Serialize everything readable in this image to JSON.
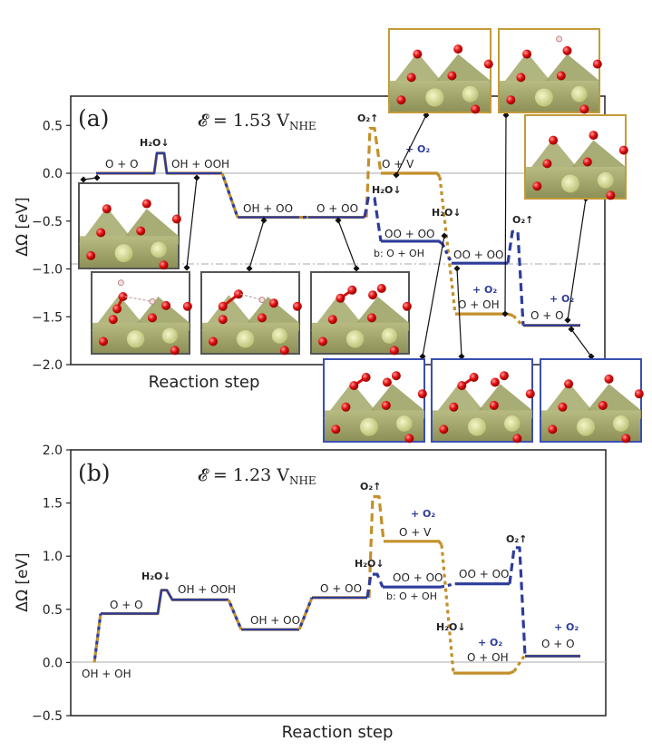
{
  "colors": {
    "blue": "#2e3c9a",
    "gold": "#c48f2a",
    "axis": "#222222",
    "grid": "#aaaaaa",
    "inset_gold_border": "#c49a3a",
    "inset_blue_border": "#3a4fb0",
    "inset_gray_border": "#555555"
  },
  "chart_data": [
    {
      "type": "line",
      "panel_label": "(a)",
      "title": "𝓔 = 1.53 V",
      "title_subscript": "NHE",
      "xlabel": "Reaction step",
      "ylabel": "ΔΩ  [eV]",
      "ylim": [
        -2.0,
        0.75
      ],
      "yticks": [
        0.5,
        0.0,
        -0.5,
        -1.0,
        -1.5,
        -2.0
      ],
      "ytick_labels": [
        "0.5",
        "0.0",
        "−0.5",
        "−1.0",
        "−1.5",
        "−2.0"
      ],
      "reference_lines": [
        {
          "y": 0.0,
          "style": "solid"
        },
        {
          "y": -0.95,
          "style": "dash-dot"
        }
      ],
      "states": [
        {
          "label": "O + O",
          "value": 0.0,
          "path": "shared"
        },
        {
          "label": "OH + OOH",
          "value": 0.0,
          "path": "shared"
        },
        {
          "label": "OH + OO",
          "value": -0.46,
          "path": "shared"
        },
        {
          "label": "O + OO",
          "value": -0.46,
          "path": "shared"
        },
        {
          "label": "O + V",
          "value": 0.0,
          "path": "gold"
        },
        {
          "label": "OO + OO",
          "value": -0.71,
          "path": "blue"
        },
        {
          "label": "OO + OO",
          "value": -0.94,
          "path": "blue"
        },
        {
          "label": "O + OH",
          "value": -1.47,
          "path": "gold"
        },
        {
          "label": "O + O",
          "value": -1.59,
          "path": "blue"
        }
      ],
      "peaks": [
        {
          "label": "H₂O↓",
          "value": 0.21,
          "path": "shared"
        },
        {
          "label": "O₂↑",
          "value": 0.47,
          "path": "gold"
        },
        {
          "label": "H₂O↓",
          "value": -0.26,
          "path": "blue"
        },
        {
          "label": "H₂O↓",
          "value": null,
          "path": "gold"
        },
        {
          "label": "O₂↑",
          "value": -0.61,
          "path": "blue"
        }
      ],
      "annotations": [
        "+ O₂",
        "+ O₂",
        "+ O₂",
        "b: O + OH"
      ]
    },
    {
      "type": "line",
      "panel_label": "(b)",
      "title": "𝓔 = 1.23 V",
      "title_subscript": "NHE",
      "xlabel": "Reaction step",
      "ylabel": "ΔΩ  [eV]",
      "ylim": [
        -0.5,
        2.0
      ],
      "yticks": [
        2.0,
        1.5,
        1.0,
        0.5,
        0.0,
        -0.5
      ],
      "ytick_labels": [
        "2.0",
        "1.5",
        "1.0",
        "0.5",
        "0.0",
        "−0.5"
      ],
      "reference_lines": [
        {
          "y": 0.0,
          "style": "solid"
        }
      ],
      "states": [
        {
          "label": "OH + OH",
          "value": 0.0,
          "path": "shared"
        },
        {
          "label": "O + O",
          "value": 0.46,
          "path": "shared"
        },
        {
          "label": "OH + OOH",
          "value": 0.59,
          "path": "shared"
        },
        {
          "label": "OH + OO",
          "value": 0.31,
          "path": "shared"
        },
        {
          "label": "O + OO",
          "value": 0.61,
          "path": "shared"
        },
        {
          "label": "O + V",
          "value": 1.14,
          "path": "gold"
        },
        {
          "label": "OO + OO",
          "value": 0.71,
          "path": "blue"
        },
        {
          "label": "OO + OO",
          "value": 0.74,
          "path": "blue"
        },
        {
          "label": "O + OH",
          "value": -0.1,
          "path": "gold"
        },
        {
          "label": "O + O",
          "value": 0.06,
          "path": "blue"
        }
      ],
      "peaks": [
        {
          "label": "H₂O↓",
          "value": 0.68,
          "path": "shared"
        },
        {
          "label": "O₂↑",
          "value": 1.56,
          "path": "gold"
        },
        {
          "label": "H₂O↓",
          "value": 0.83,
          "path": "blue"
        },
        {
          "label": "H₂O↓",
          "value": null,
          "path": "gold"
        },
        {
          "label": "O₂↑",
          "value": 1.08,
          "path": "blue"
        }
      ],
      "annotations": [
        "+ O₂",
        "+ O₂",
        "+ O₂",
        "b: O + OH"
      ]
    }
  ]
}
